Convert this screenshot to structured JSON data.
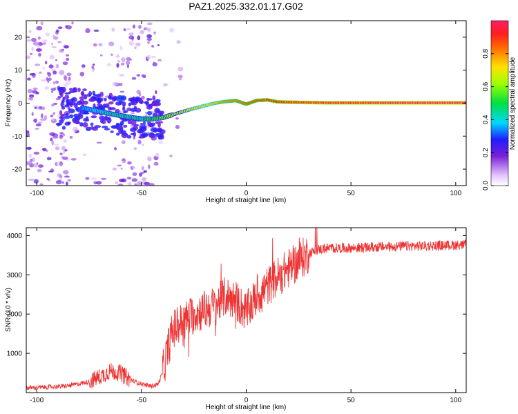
{
  "chart_data": [
    {
      "type": "heatmap",
      "title": "PAZ1.2025.332.01.17.G02",
      "xlabel": "Height of straight line (km)",
      "ylabel": "Frequency (Hz)",
      "xlim": [
        -105,
        105
      ],
      "ylim": [
        -25,
        25
      ],
      "xticks": [
        "-100",
        "-50",
        "0",
        "50",
        "100"
      ],
      "yticks": [
        "-20",
        "-10",
        "0",
        "10",
        "20"
      ],
      "colorbar": {
        "label": "Normalized spectral amplitude",
        "range": [
          0,
          1
        ],
        "ticks": [
          "0.0",
          "0.2",
          "0.4",
          "0.6",
          "0.8"
        ]
      },
      "ridge_height_km": [
        -78,
        -70,
        -65,
        -60,
        -55,
        -50,
        -45,
        -40,
        -35,
        -30,
        -25,
        -20,
        -15,
        -10,
        -5,
        0,
        5,
        10,
        15,
        20,
        30,
        40,
        60,
        80,
        105
      ],
      "ridge_frequency_hz": [
        -1.5,
        -2.5,
        -3.2,
        -3.8,
        -4.3,
        -4.8,
        -4.8,
        -4.4,
        -3.5,
        -2.5,
        -1.6,
        -0.8,
        0.0,
        0.5,
        0.8,
        -0.3,
        0.8,
        1.0,
        0.4,
        0.3,
        0.2,
        0.1,
        0.1,
        0.1,
        0.1
      ],
      "ridge_amplitude": [
        0.35,
        0.4,
        0.45,
        0.45,
        0.45,
        0.45,
        0.5,
        0.55,
        0.6,
        0.65,
        0.7,
        0.72,
        0.75,
        0.8,
        0.82,
        0.85,
        0.88,
        0.9,
        0.92,
        0.95,
        0.97,
        0.98,
        0.99,
        1.0,
        1.0
      ]
    },
    {
      "type": "line",
      "xlabel": "Height of straight line (km)",
      "ylabel": "SNR (10 * v/v)",
      "xlim": [
        -105,
        105
      ],
      "ylim": [
        0,
        4200
      ],
      "xticks": [
        "-100",
        "-50",
        "0",
        "50",
        "100"
      ],
      "yticks": [
        "1000",
        "2000",
        "3000",
        "4000"
      ],
      "line_color": "#ee3333",
      "x": [
        -105,
        -95,
        -85,
        -75,
        -70,
        -65,
        -60,
        -55,
        -50,
        -45,
        -42,
        -40,
        -37,
        -35,
        -32,
        -30,
        -25,
        -20,
        -15,
        -10,
        -5,
        0,
        5,
        10,
        15,
        20,
        25,
        30,
        35,
        40,
        50,
        60,
        70,
        80,
        90,
        100,
        105
      ],
      "y": [
        120,
        140,
        170,
        280,
        400,
        550,
        500,
        320,
        220,
        160,
        220,
        500,
        1200,
        1600,
        1750,
        1800,
        2000,
        2100,
        2200,
        2450,
        2350,
        2050,
        2450,
        2700,
        2950,
        3150,
        3350,
        3550,
        3650,
        3680,
        3680,
        3700,
        3720,
        3730,
        3740,
        3760,
        3760
      ]
    }
  ]
}
